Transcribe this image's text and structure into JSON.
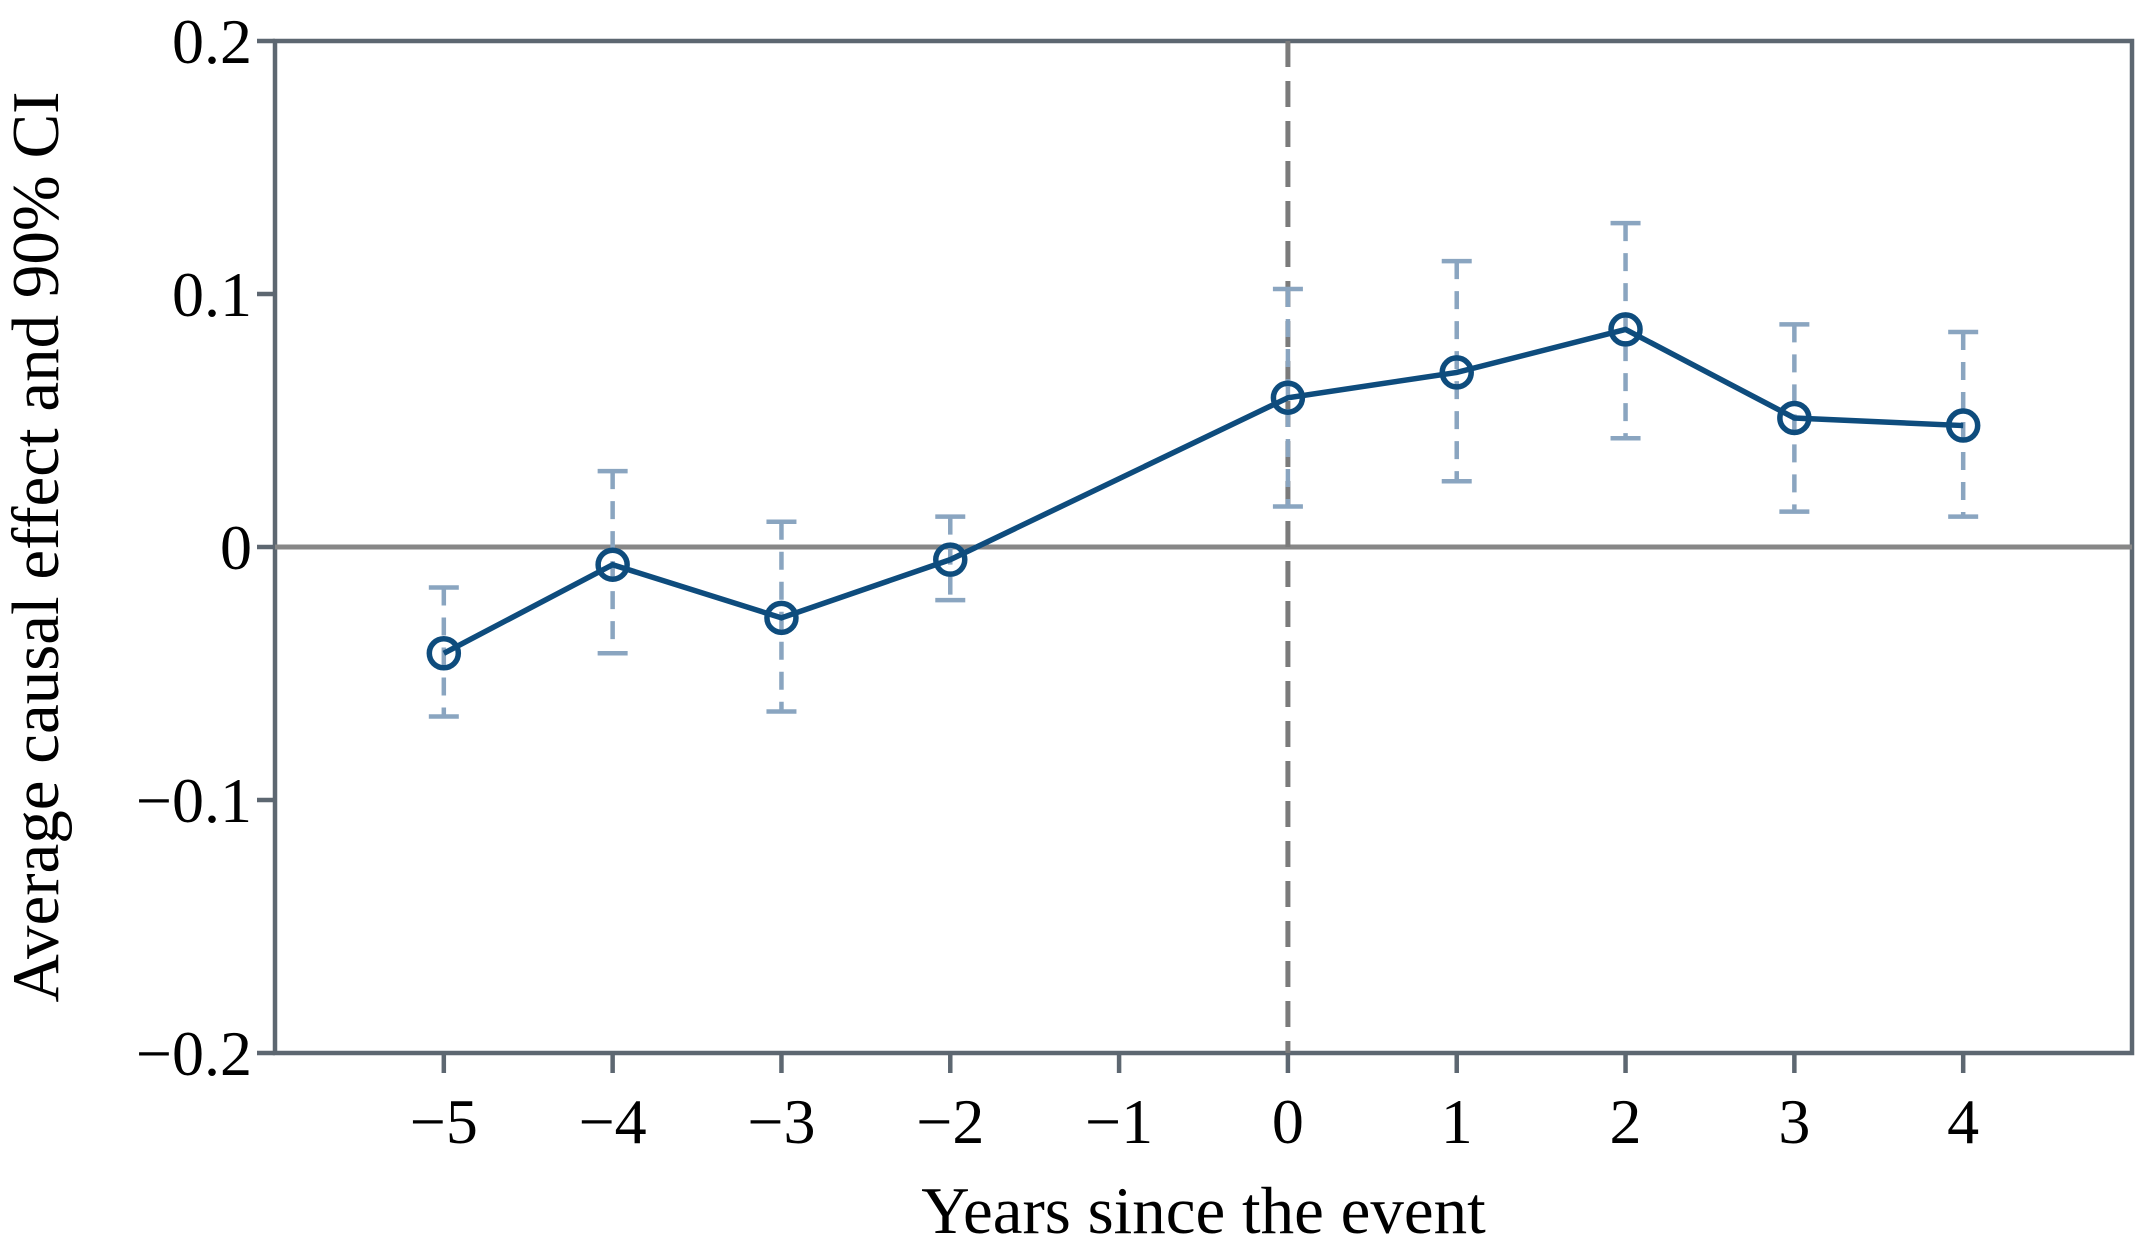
{
  "chart_data": {
    "type": "line",
    "title": "",
    "xlabel": "Years since the event",
    "ylabel": "Average causal effect and 90% CI",
    "confidence_level": "90%",
    "x": [
      -5,
      -4,
      -3,
      -2,
      0,
      1,
      2,
      3,
      4
    ],
    "series": [
      {
        "name": "Average causal effect",
        "values": [
          -0.042,
          -0.007,
          -0.028,
          -0.005,
          0.059,
          0.069,
          0.086,
          0.051,
          0.048
        ],
        "ci_low": [
          -0.067,
          -0.042,
          -0.065,
          -0.021,
          0.016,
          0.026,
          0.043,
          0.014,
          0.012
        ],
        "ci_high": [
          -0.016,
          0.03,
          0.01,
          0.012,
          0.102,
          0.113,
          0.128,
          0.088,
          0.085
        ]
      }
    ],
    "x_ticks": [
      -5,
      -4,
      -3,
      -2,
      -1,
      0,
      1,
      2,
      3,
      4
    ],
    "x_tick_labels": [
      "−5",
      "−4",
      "−3",
      "−2",
      "−1",
      "0",
      "1",
      "2",
      "3",
      "4"
    ],
    "y_ticks": [
      0.2,
      0.1,
      0,
      -0.1,
      -0.2
    ],
    "y_tick_labels": [
      "0.2",
      "0.1",
      "0",
      "−0.1",
      "−0.2"
    ],
    "xlim": [
      -6,
      5
    ],
    "ylim": [
      -0.2,
      0.2
    ],
    "reference_lines": {
      "vertical_x": 0,
      "horizontal_y": 0
    },
    "grid": false,
    "legend": false,
    "marker": "open-circle",
    "colors": {
      "line": "#0e4c7d",
      "marker_stroke": "#0e4c7d",
      "ci": "#8aa5c0",
      "zero_line": "#878787",
      "event_line": "#7b7b7b",
      "frame": "#5d6771",
      "text": "#000000",
      "background": "#ffffff"
    }
  }
}
